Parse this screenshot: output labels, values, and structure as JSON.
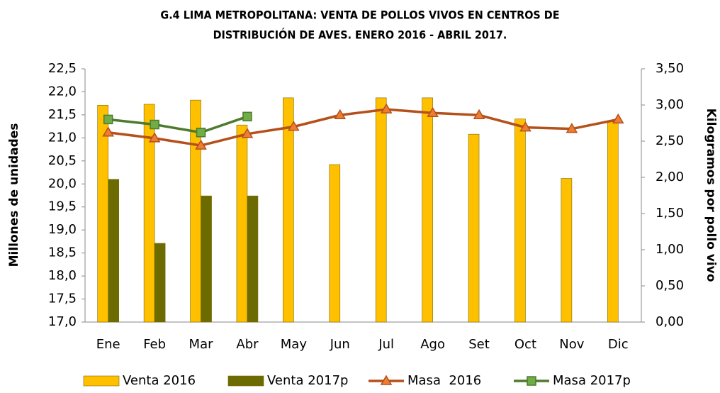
{
  "chart_data": {
    "type": "bar_line",
    "title": [
      "G.4  LIMA METROPOLITANA: VENTA DE POLLOS VIVOS EN CENTROS DE",
      "DISTRIBUCIÓN DE AVES. ENERO 2016 - ABRIL 2017."
    ],
    "y_label": "Millones de unidades",
    "y2_label": "Kilogramos por pollo vivo",
    "categories": [
      "Ene",
      "Feb",
      "Mar",
      "Abr",
      "May",
      "Jun",
      "Jul",
      "Ago",
      "Set",
      "Oct",
      "Nov",
      "Dic"
    ],
    "series": [
      {
        "name": "Venta 2016",
        "type": "bar",
        "color": "#FFC000",
        "values": [
          21.71,
          21.73,
          21.82,
          21.28,
          21.87,
          20.42,
          21.87,
          21.87,
          21.08,
          21.41,
          20.12,
          21.35
        ]
      },
      {
        "name": "Venta 2017p",
        "type": "bar",
        "color": "#6B6B00",
        "values": [
          20.1,
          18.71,
          19.74,
          19.74,
          null,
          null,
          null,
          null,
          null,
          null,
          null,
          null
        ]
      },
      {
        "name": "Masa  2016",
        "type": "line",
        "axis": "y2",
        "color": "#B5501A",
        "marker": "triangle",
        "values": [
          2.62,
          2.54,
          2.44,
          2.6,
          2.7,
          2.86,
          2.94,
          2.89,
          2.86,
          2.69,
          2.67,
          2.8
        ]
      },
      {
        "name": "Masa 2017p",
        "type": "line",
        "axis": "y2",
        "color": "#4E7A2E",
        "marker": "square",
        "values": [
          2.8,
          2.73,
          2.62,
          2.84,
          null,
          null,
          null,
          null,
          null,
          null,
          null,
          null
        ]
      }
    ],
    "ylim": [
      17.0,
      22.5
    ],
    "yticks": [
      {
        "value": 17.0,
        "label": "17,0"
      },
      {
        "value": 17.5,
        "label": "17,5"
      },
      {
        "value": 18.0,
        "label": "18,0"
      },
      {
        "value": 18.5,
        "label": "18,5"
      },
      {
        "value": 19.0,
        "label": "19,0"
      },
      {
        "value": 19.5,
        "label": "19,5"
      },
      {
        "value": 20.0,
        "label": "20,0"
      },
      {
        "value": 20.5,
        "label": "20,5"
      },
      {
        "value": 21.0,
        "label": "21,0"
      },
      {
        "value": 21.5,
        "label": "21,5"
      },
      {
        "value": 22.0,
        "label": "22,0"
      },
      {
        "value": 22.5,
        "label": "22,5"
      }
    ],
    "y2lim": [
      0,
      3.5
    ],
    "y2ticks": [
      {
        "value": 0,
        "label": "0,00"
      },
      {
        "value": 0.5,
        "label": "0,50"
      },
      {
        "value": 1.0,
        "label": "1,00"
      },
      {
        "value": 1.5,
        "label": "1,50"
      },
      {
        "value": 2.0,
        "label": "2,00"
      },
      {
        "value": 2.5,
        "label": "2,50"
      },
      {
        "value": 3.0,
        "label": "3,00"
      },
      {
        "value": 3.5,
        "label": "3,50"
      }
    ],
    "grid": false,
    "legend": "bottom"
  }
}
